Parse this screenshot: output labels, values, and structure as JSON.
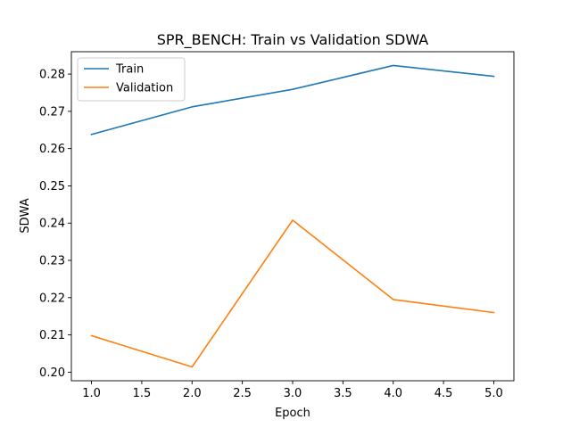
{
  "chart_data": {
    "type": "line",
    "title": "SPR_BENCH: Train vs Validation SDWA",
    "xlabel": "Epoch",
    "ylabel": "SDWA",
    "x": [
      1,
      2,
      3,
      4,
      5
    ],
    "series": [
      {
        "name": "Train",
        "color": "#1f77b4",
        "values": [
          0.2638,
          0.2712,
          0.2759,
          0.2823,
          0.2794
        ]
      },
      {
        "name": "Validation",
        "color": "#ff7f0e",
        "values": [
          0.2098,
          0.2014,
          0.2408,
          0.2195,
          0.216
        ]
      }
    ],
    "xlim": [
      0.8,
      5.2
    ],
    "ylim": [
      0.1977,
      0.286
    ],
    "xticks": [
      1.0,
      1.5,
      2.0,
      2.5,
      3.0,
      3.5,
      4.0,
      4.5,
      5.0
    ],
    "xtick_labels": [
      "1.0",
      "1.5",
      "2.0",
      "2.5",
      "3.0",
      "3.5",
      "4.0",
      "4.5",
      "5.0"
    ],
    "yticks": [
      0.2,
      0.21,
      0.22,
      0.23,
      0.24,
      0.25,
      0.26,
      0.27,
      0.28
    ],
    "ytick_labels": [
      "0.20",
      "0.21",
      "0.22",
      "0.23",
      "0.24",
      "0.25",
      "0.26",
      "0.27",
      "0.28"
    ],
    "grid": false,
    "legend_position": "top-left"
  }
}
